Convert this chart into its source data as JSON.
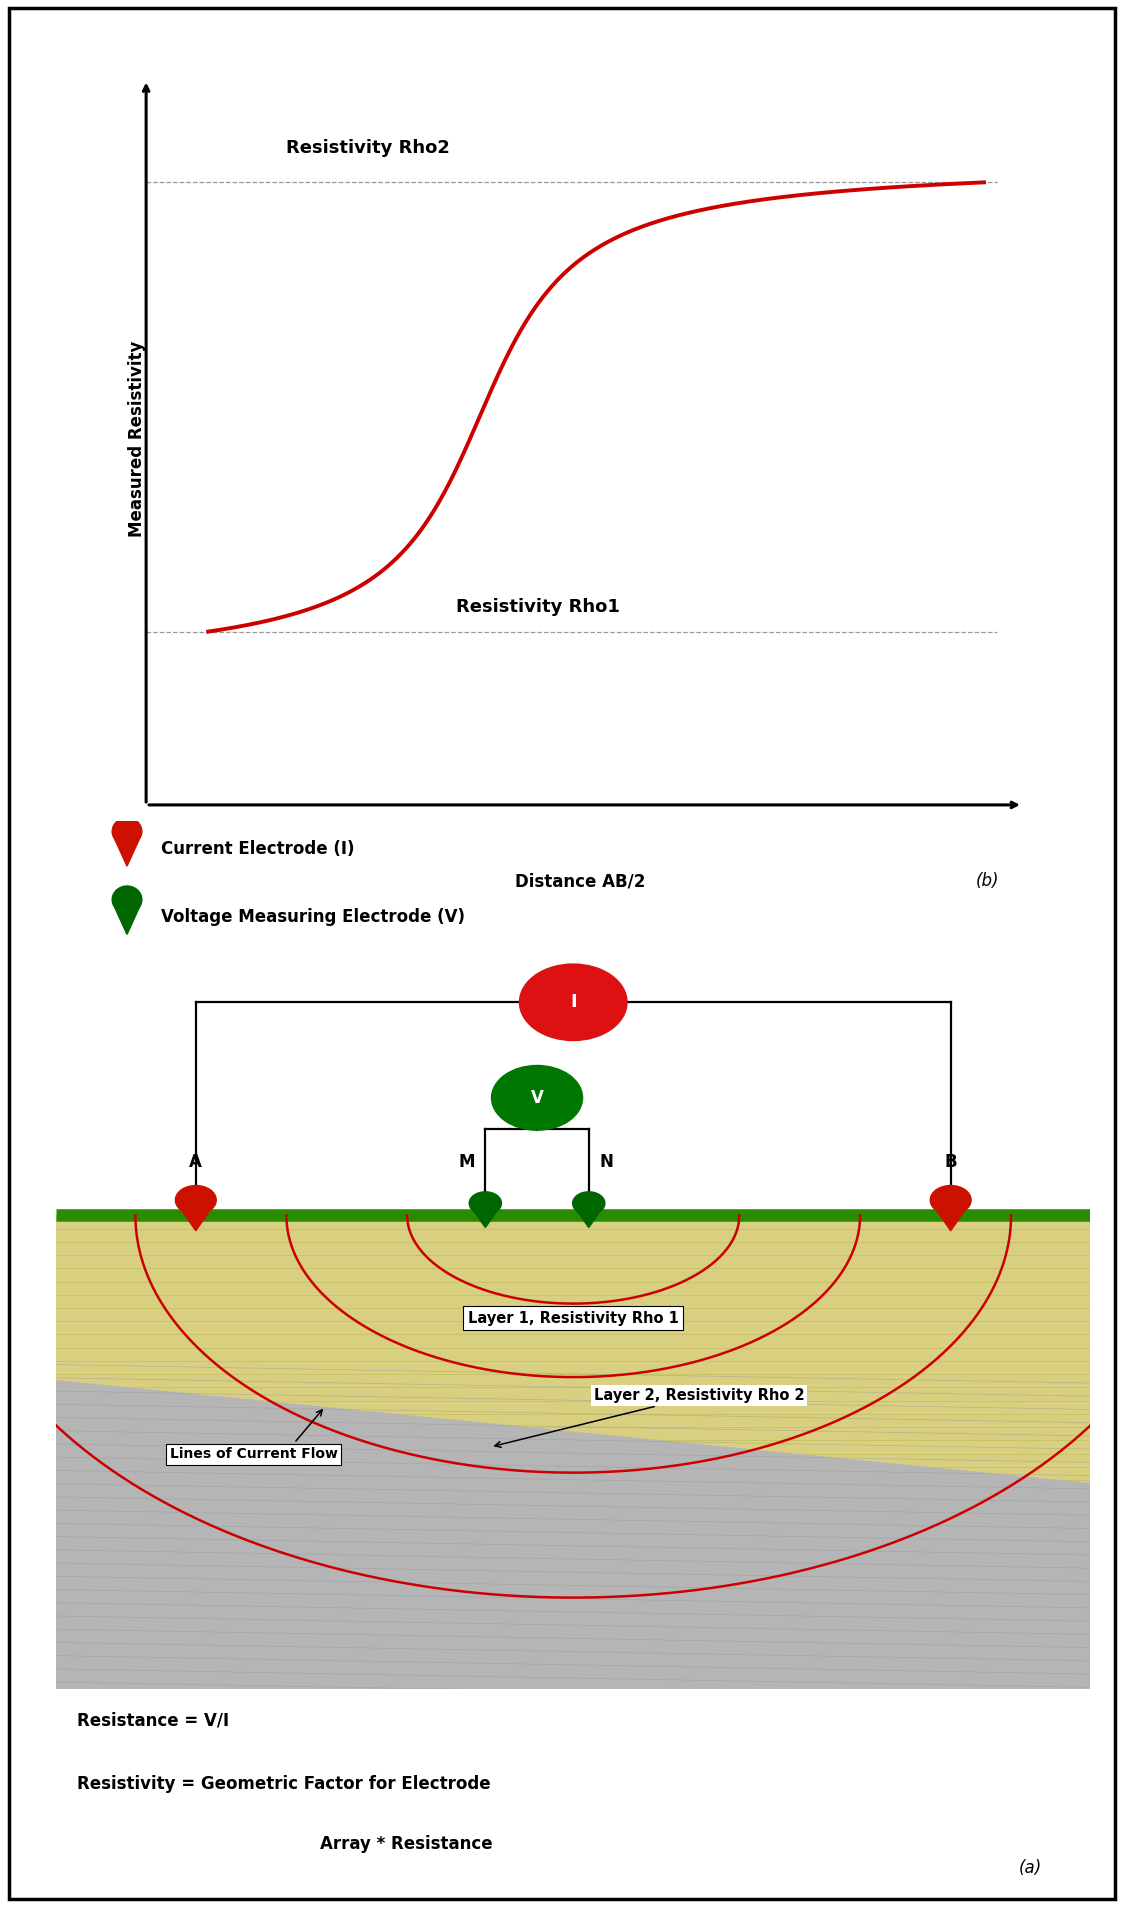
{
  "fig_width": 11.24,
  "fig_height": 19.09,
  "bg_color": "#ffffff",
  "border_color": "#000000",
  "graph_xlabel": "Distance AB/2",
  "graph_ylabel": "Measured Resistivity",
  "rho1_label": "Resistivity Rho1",
  "rho2_label": "Resistivity Rho2",
  "curve_color": "#cc0000",
  "dashed_color": "#999999",
  "legend_current_color": "#cc1100",
  "legend_voltage_color": "#006600",
  "legend_current_label": "Current Electrode (I)",
  "legend_voltage_label": "Voltage Measuring Electrode (V)",
  "diagram_title_a": "(a)",
  "label_b": "(b)",
  "label_A": "A",
  "label_B": "B",
  "label_M": "M",
  "label_N": "N",
  "label_I": "I",
  "label_V": "V",
  "surface_color": "#2a8c00",
  "layer1_bg": "#d8d080",
  "layer1_stripe": "#bfb850",
  "layer2_bg": "#b5b5b5",
  "layer2_stripe": "#999999",
  "arc_color": "#cc0000",
  "layer1_label": "Layer 1, Resistivity Rho 1",
  "layer2_label": "Layer 2, Resistivity Rho 2",
  "current_flow_label": "Lines of Current Flow",
  "formula1": "Resistance = V/I",
  "formula2": "Resistivity = Geometric Factor for Electrode",
  "formula3": "Array * Resistance"
}
